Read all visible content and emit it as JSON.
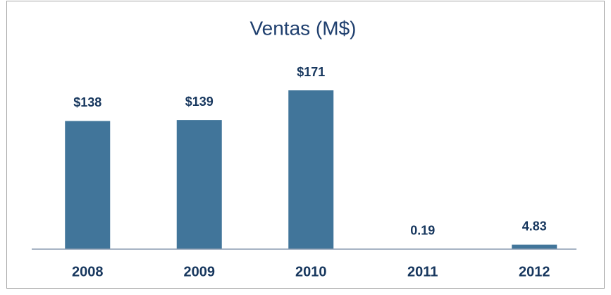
{
  "chart_data": {
    "type": "bar",
    "title": "Ventas (M$)",
    "categories": [
      "2008",
      "2009",
      "2010",
      "2011",
      "2012"
    ],
    "values": [
      138,
      139,
      171,
      0.19,
      4.83
    ],
    "value_labels": [
      "$138",
      "$139",
      "$171",
      "0.19",
      "4.83"
    ],
    "color": "#41759a"
  }
}
